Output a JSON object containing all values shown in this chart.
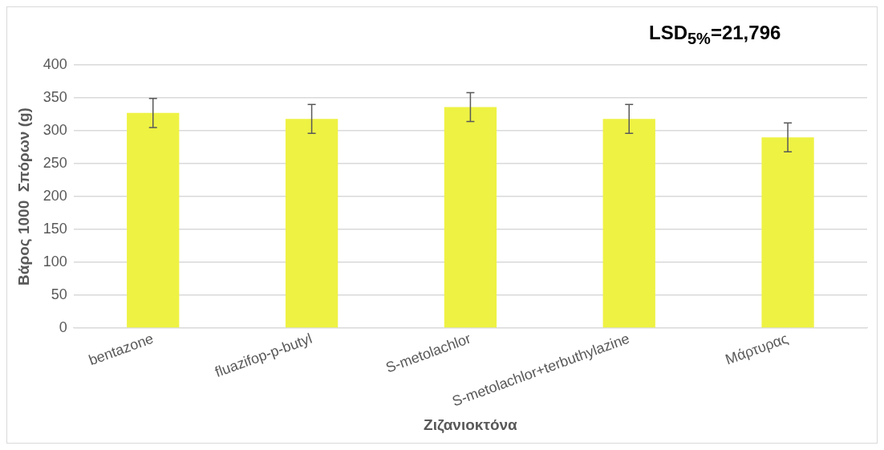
{
  "chart_data": {
    "type": "bar",
    "xlabel": "Ζιζανιοκτόνα",
    "ylabel": "Βάρος 1000  Σπόρων (g)",
    "categories": [
      "bentazone",
      "fluazifop-p-butyl",
      "S-metolachlor",
      "S-metolachlor+terbuthylazine",
      "Μάρτυρας"
    ],
    "values": [
      327,
      318,
      336,
      318,
      290
    ],
    "errors": [
      22,
      22,
      22,
      22,
      22
    ],
    "color": "#eef243",
    "ylim": [
      0,
      400
    ],
    "yticks": [
      0,
      50,
      100,
      150,
      200,
      250,
      300,
      350,
      400
    ],
    "grid": "y",
    "annotations": [
      "LSD$_{5%}$=21,796"
    ]
  }
}
